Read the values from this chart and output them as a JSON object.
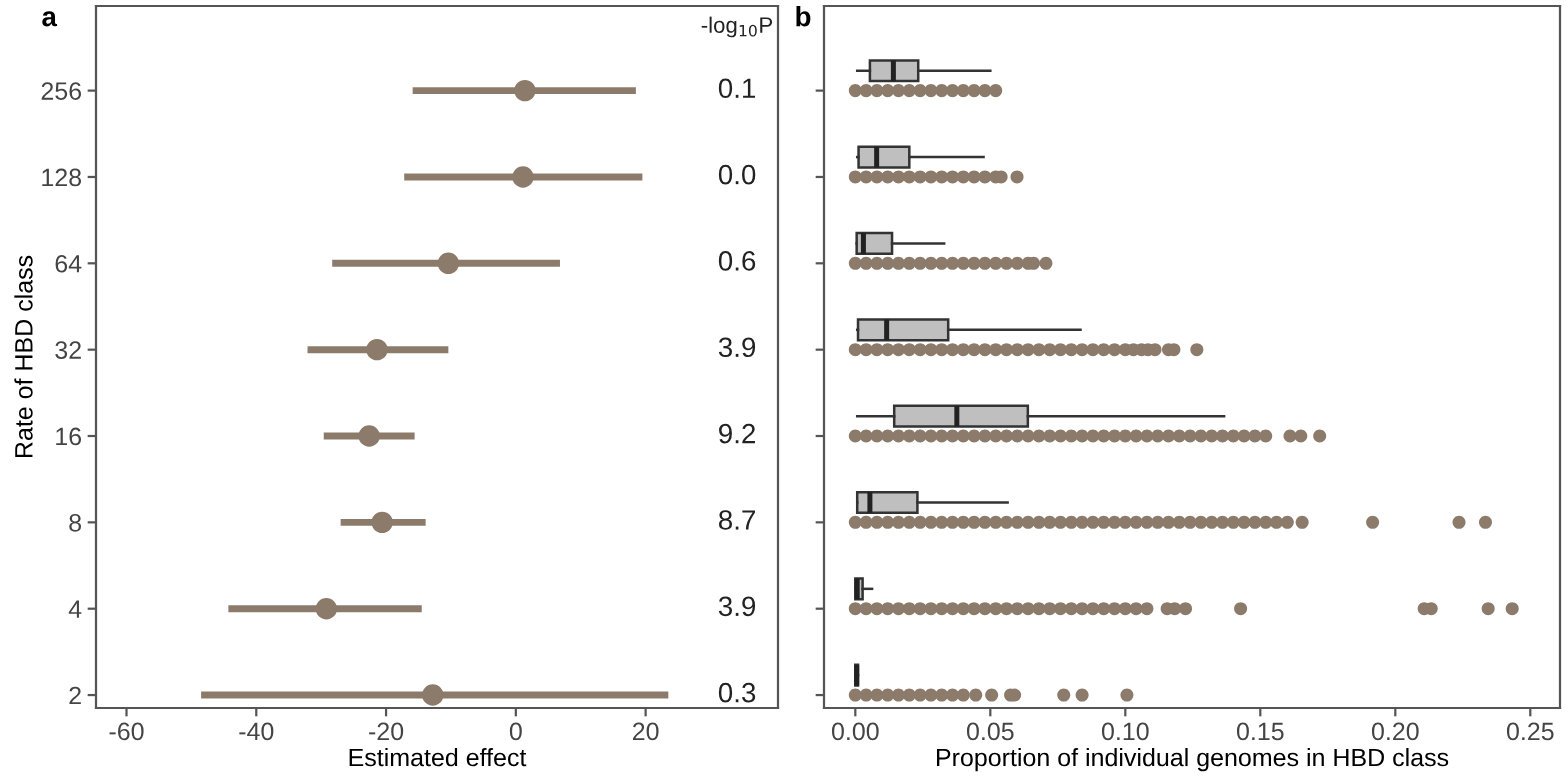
{
  "chart_data": [
    {
      "type": "scatter",
      "orientation": "horizontal",
      "title": "a",
      "xlabel": "Estimated effect",
      "ylabel": "Rate of HBD class",
      "categories": [
        "256",
        "128",
        "64",
        "32",
        "16",
        "8",
        "4",
        "2"
      ],
      "values": [
        1.4,
        1.1,
        -10.4,
        -21.4,
        -22.6,
        -20.6,
        -29.2,
        -12.8
      ],
      "errors": [
        [
          -15.9,
          18.5
        ],
        [
          -17.2,
          19.5
        ],
        [
          -28.3,
          6.8
        ],
        [
          -32.1,
          -10.4
        ],
        [
          -29.6,
          -15.6
        ],
        [
          -27.0,
          -13.9
        ],
        [
          -44.3,
          -14.5
        ],
        [
          -48.5,
          23.5
        ]
      ],
      "color": "#8c7b6b",
      "marker": "circle",
      "xlim": [
        -64.7,
        40.4
      ],
      "xticks": [
        -60,
        -40,
        -20,
        0,
        20
      ],
      "grid": false,
      "annotations": [
        "-log$_{10}$P",
        "0.1",
        "0.0",
        "0.6",
        "3.9",
        "9.2",
        "8.7",
        "3.9",
        "0.3"
      ]
    },
    {
      "type": "box",
      "orientation": "horizontal",
      "title": "b",
      "xlabel": "Proportion of individual genomes in HBD class",
      "categories": [
        "256",
        "128",
        "64",
        "32",
        "16",
        "8",
        "4",
        "2"
      ],
      "tick_labels": "x",
      "grid": false,
      "color": "#bfbfbf",
      "xlim": [
        -0.0116,
        0.261
      ],
      "xticks": [
        {
          "value": 0,
          "label": "0.00"
        },
        {
          "value": 0.05,
          "label": "0.05"
        },
        {
          "value": 0.1,
          "label": "0.10"
        },
        {
          "value": 0.15,
          "label": "0.15"
        },
        {
          "value": 0.2,
          "label": "0.20"
        },
        {
          "value": 0.25,
          "label": "0.25"
        }
      ],
      "boxes": [
        {
          "low": 0.0007,
          "q1": 0.0054,
          "median": 0.0141,
          "q3": 0.0233,
          "high": 0.05
        },
        {
          "low": 0.0007,
          "q1": 0.0012,
          "median": 0.0079,
          "q3": 0.02,
          "high": 0.0475
        },
        {
          "low": 0.0005,
          "q1": 0.0005,
          "median": 0.003,
          "q3": 0.0136,
          "high": 0.0329
        },
        {
          "low": 0.0007,
          "q1": 0.001,
          "median": 0.0116,
          "q3": 0.0344,
          "high": 0.0834
        },
        {
          "low": 0.0007,
          "q1": 0.0144,
          "median": 0.0376,
          "q3": 0.0639,
          "high": 0.1366
        },
        {
          "low": 0.0007,
          "q1": 0.0007,
          "median": 0.0054,
          "q3": 0.023,
          "high": 0.0564
        },
        {
          "low": 0,
          "q1": 0,
          "median": 0.0007,
          "q3": 0.0027,
          "high": 0.0062
        },
        {
          "low": 0,
          "q1": 0,
          "median": 0.0005,
          "q3": 0.001,
          "high": 0.001
        }
      ],
      "series": [
        {
          "type": "scatter",
          "color": "#8c7b6b",
          "x": [
            "256",
            "256",
            "256",
            "256",
            "256",
            "256",
            "256",
            "256",
            "256",
            "256",
            "256",
            "256",
            "256",
            "256"
          ],
          "values": [
            0,
            0.004,
            0.008,
            0.012,
            0.016,
            0.02,
            0.024,
            0.028,
            0.032,
            0.036,
            0.04,
            0.044,
            0.048,
            0.052
          ]
        },
        {
          "type": "scatter",
          "color": "#8c7b6b",
          "x": [
            "128",
            "128",
            "128",
            "128",
            "128",
            "128",
            "128",
            "128",
            "128",
            "128",
            "128",
            "128",
            "128",
            "128",
            "128",
            "128"
          ],
          "values": [
            0,
            0.004,
            0.008,
            0.012,
            0.016,
            0.02,
            0.024,
            0.028,
            0.032,
            0.036,
            0.04,
            0.044,
            0.048,
            0.052,
            0.054,
            0.0599
          ]
        },
        {
          "type": "scatter",
          "color": "#8c7b6b",
          "x": [
            "64",
            "64",
            "64",
            "64",
            "64",
            "64",
            "64",
            "64",
            "64",
            "64",
            "64",
            "64",
            "64",
            "64",
            "64",
            "64",
            "64",
            "64",
            "64"
          ],
          "values": [
            0,
            0.004,
            0.008,
            0.012,
            0.016,
            0.02,
            0.024,
            0.028,
            0.032,
            0.036,
            0.04,
            0.044,
            0.048,
            0.052,
            0.056,
            0.06,
            0.064,
            0.066,
            0.0706
          ]
        },
        {
          "type": "scatter",
          "color": "#8c7b6b",
          "x": [
            "32",
            "32",
            "32",
            "32",
            "32",
            "32",
            "32",
            "32",
            "32",
            "32",
            "32",
            "32",
            "32",
            "32",
            "32",
            "32",
            "32",
            "32",
            "32",
            "32",
            "32",
            "32",
            "32",
            "32",
            "32",
            "32",
            "32",
            "32",
            "32",
            "32",
            "32",
            "32",
            "32"
          ],
          "values": [
            0,
            0.004,
            0.008,
            0.012,
            0.016,
            0.02,
            0.024,
            0.028,
            0.032,
            0.036,
            0.04,
            0.044,
            0.048,
            0.052,
            0.056,
            0.06,
            0.064,
            0.068,
            0.072,
            0.076,
            0.08,
            0.084,
            0.088,
            0.092,
            0.096,
            0.1,
            0.103,
            0.106,
            0.1084,
            0.111,
            0.116,
            0.118,
            0.1265
          ]
        },
        {
          "type": "scatter",
          "color": "#8c7b6b",
          "x": [
            "16",
            "16",
            "16",
            "16",
            "16",
            "16",
            "16",
            "16",
            "16",
            "16",
            "16",
            "16",
            "16",
            "16",
            "16",
            "16",
            "16",
            "16",
            "16",
            "16",
            "16",
            "16",
            "16",
            "16",
            "16",
            "16",
            "16",
            "16",
            "16",
            "16",
            "16",
            "16",
            "16",
            "16",
            "16",
            "16",
            "16",
            "16",
            "16",
            "16",
            "16",
            "16"
          ],
          "values": [
            0,
            0.004,
            0.008,
            0.012,
            0.016,
            0.02,
            0.024,
            0.028,
            0.032,
            0.036,
            0.04,
            0.044,
            0.048,
            0.052,
            0.056,
            0.06,
            0.064,
            0.068,
            0.072,
            0.076,
            0.08,
            0.084,
            0.088,
            0.092,
            0.096,
            0.1,
            0.104,
            0.108,
            0.112,
            0.116,
            0.12,
            0.124,
            0.128,
            0.132,
            0.136,
            0.14,
            0.144,
            0.148,
            0.152,
            0.161,
            0.165,
            0.172
          ]
        },
        {
          "type": "scatter",
          "color": "#8c7b6b",
          "x": [
            "8",
            "8",
            "8",
            "8",
            "8",
            "8",
            "8",
            "8",
            "8",
            "8",
            "8",
            "8",
            "8",
            "8",
            "8",
            "8",
            "8",
            "8",
            "8",
            "8",
            "8",
            "8",
            "8",
            "8",
            "8",
            "8",
            "8",
            "8",
            "8",
            "8",
            "8",
            "8",
            "8",
            "8",
            "8",
            "8",
            "8",
            "8",
            "8",
            "8",
            "8",
            "8",
            "8",
            "8",
            "8"
          ],
          "values": [
            0,
            0.004,
            0.008,
            0.012,
            0.016,
            0.02,
            0.024,
            0.028,
            0.032,
            0.036,
            0.04,
            0.044,
            0.048,
            0.052,
            0.056,
            0.06,
            0.064,
            0.068,
            0.072,
            0.076,
            0.08,
            0.084,
            0.088,
            0.092,
            0.096,
            0.1,
            0.104,
            0.108,
            0.112,
            0.116,
            0.12,
            0.124,
            0.128,
            0.132,
            0.136,
            0.14,
            0.144,
            0.148,
            0.152,
            0.156,
            0.16,
            0.1655,
            0.1916,
            0.2236,
            0.2334
          ]
        },
        {
          "type": "scatter",
          "color": "#8c7b6b",
          "x": [
            "4",
            "4",
            "4",
            "4",
            "4",
            "4",
            "4",
            "4",
            "4",
            "4",
            "4",
            "4",
            "4",
            "4",
            "4",
            "4",
            "4",
            "4",
            "4",
            "4",
            "4",
            "4",
            "4",
            "4",
            "4",
            "4",
            "4",
            "4",
            "4",
            "4",
            "4",
            "4",
            "4",
            "4",
            "4",
            "4"
          ],
          "values": [
            0,
            0.004,
            0.008,
            0.012,
            0.016,
            0.02,
            0.024,
            0.028,
            0.032,
            0.036,
            0.04,
            0.044,
            0.048,
            0.052,
            0.056,
            0.06,
            0.064,
            0.068,
            0.072,
            0.076,
            0.08,
            0.084,
            0.088,
            0.092,
            0.096,
            0.1,
            0.104,
            0.108,
            0.1155,
            0.1183,
            0.1223,
            0.1427,
            0.2107,
            0.2133,
            0.2344,
            0.2433
          ]
        },
        {
          "type": "scatter",
          "color": "#8c7b6b",
          "x": [
            "2",
            "2",
            "2",
            "2",
            "2",
            "2",
            "2",
            "2",
            "2",
            "2",
            "2",
            "2",
            "2",
            "2",
            "2",
            "2",
            "2",
            "2"
          ],
          "values": [
            0,
            0.004,
            0.008,
            0.012,
            0.016,
            0.02,
            0.024,
            0.028,
            0.032,
            0.036,
            0.04,
            0.0446,
            0.0505,
            0.0575,
            0.059,
            0.0772,
            0.084,
            0.1006
          ]
        }
      ]
    }
  ]
}
